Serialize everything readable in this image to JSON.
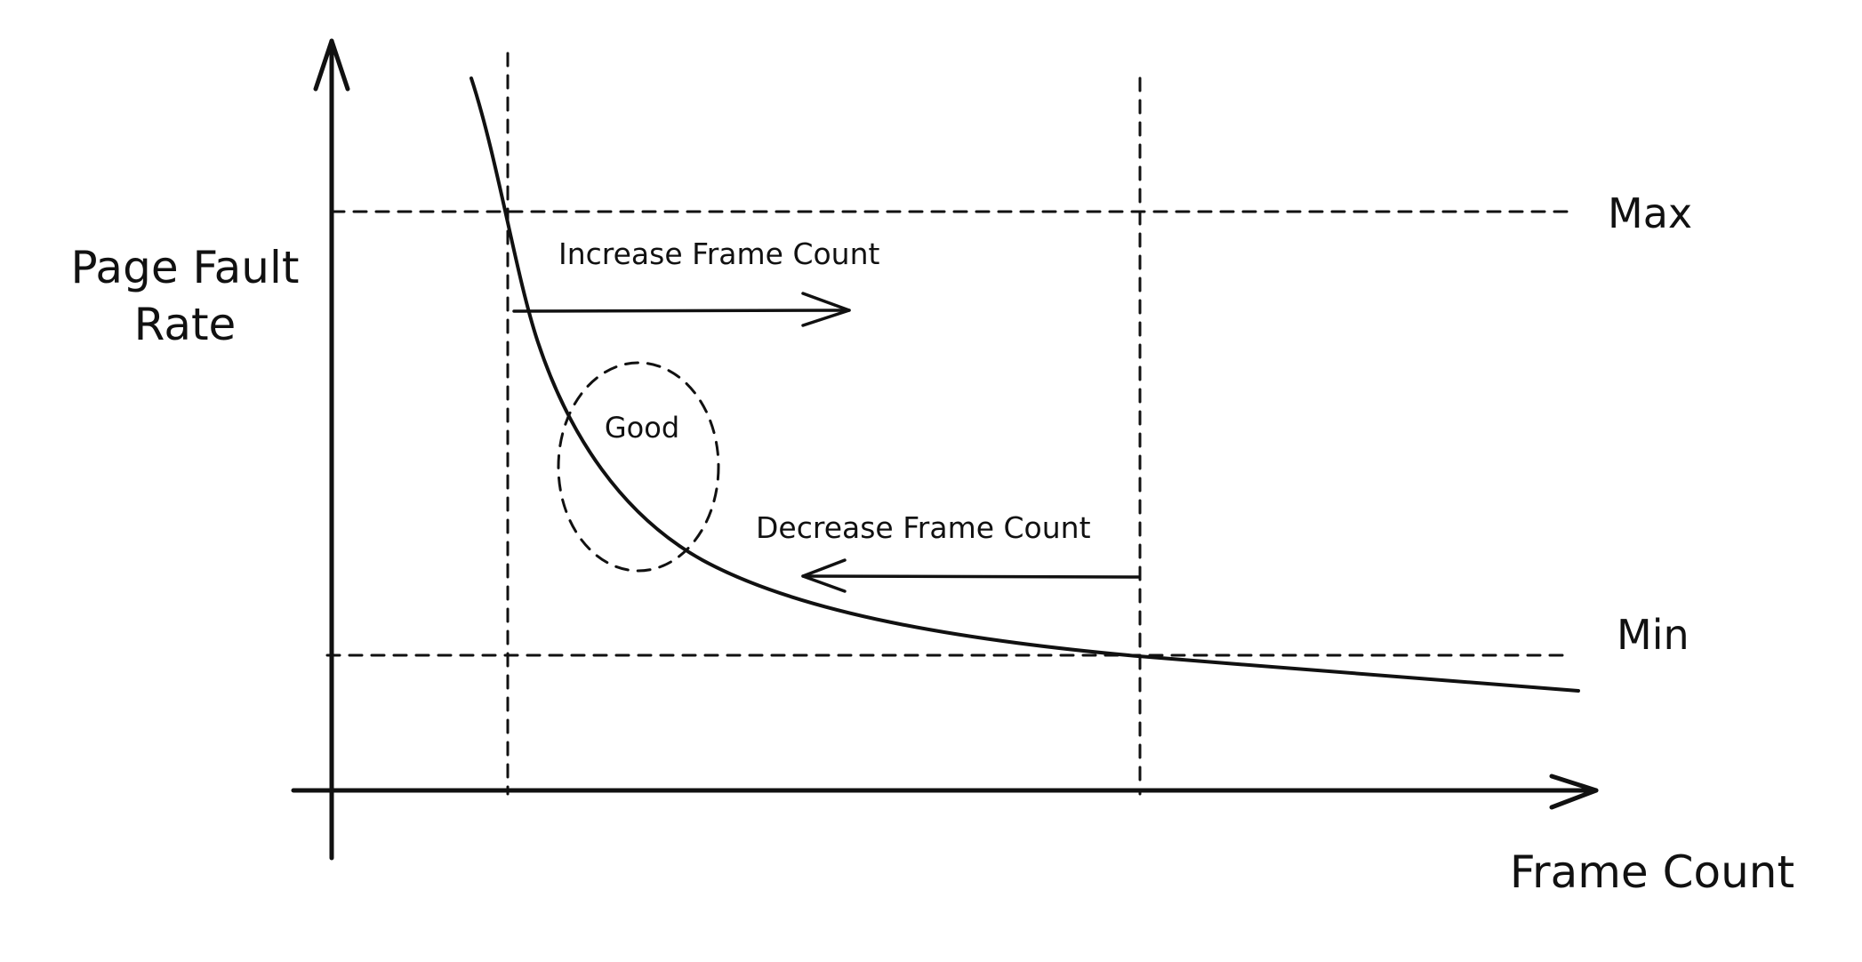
{
  "diagram": {
    "y_axis_label": [
      "Page Fault",
      "Rate"
    ],
    "x_axis_label": "Frame Count",
    "max_label": "Max",
    "min_label": "Min",
    "increase_label": "Increase Frame Count",
    "decrease_label": "Decrease Frame Count",
    "good_label": "Good"
  }
}
